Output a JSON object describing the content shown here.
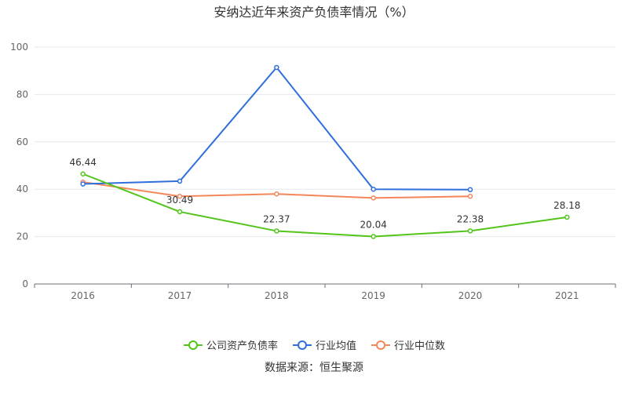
{
  "chart_data": {
    "type": "line",
    "title": "安纳达近年来资产负债率情况（%）",
    "categories": [
      "2016",
      "2017",
      "2018",
      "2019",
      "2020",
      "2021"
    ],
    "ylim": [
      0,
      100
    ],
    "yticks": [
      0,
      20,
      40,
      60,
      80,
      100
    ],
    "grid": true,
    "legend_position": "bottom",
    "series": [
      {
        "name": "公司资产负债率",
        "color": "#52c41a",
        "values": [
          46.44,
          30.49,
          22.37,
          20.04,
          22.38,
          28.18
        ],
        "data_labels": true
      },
      {
        "name": "行业均值",
        "color": "#2f6fdb",
        "values": [
          42.2,
          43.4,
          91.4,
          40.0,
          39.8,
          null
        ],
        "data_labels": false
      },
      {
        "name": "行业中位数",
        "color": "#f4875a",
        "values": [
          43.0,
          37.0,
          38.0,
          36.3,
          37.0,
          null
        ],
        "data_labels": false
      }
    ],
    "source": "数据来源：恒生聚源"
  }
}
